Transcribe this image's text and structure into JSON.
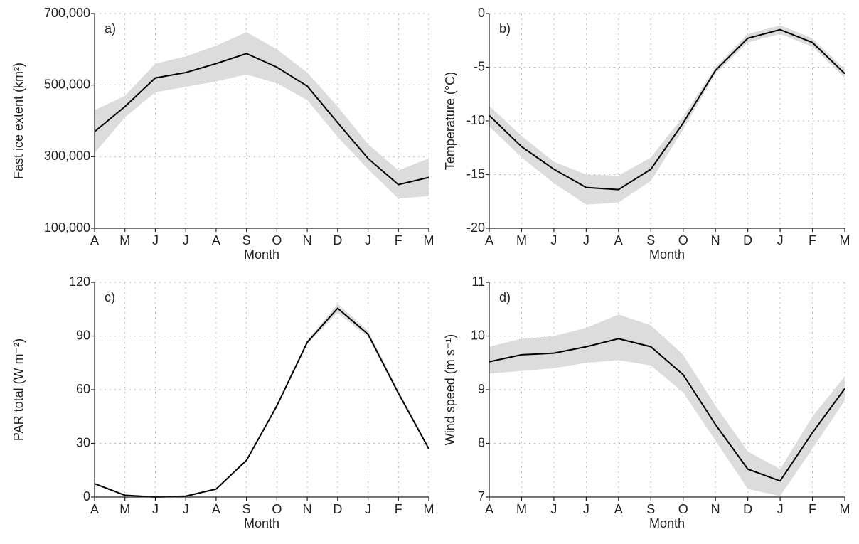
{
  "chart_data": [
    {
      "type": "line",
      "panel_label": "a)",
      "x_label": "Month",
      "y_label": "Fast ice extent (km²)",
      "categories": [
        "A",
        "M",
        "J",
        "J",
        "A",
        "S",
        "O",
        "N",
        "D",
        "J",
        "F",
        "M"
      ],
      "values": [
        370000,
        440000,
        520000,
        535000,
        560000,
        588000,
        550000,
        497000,
        395000,
        295000,
        222000,
        242000
      ],
      "band_lower": [
        310000,
        410000,
        480000,
        495000,
        510000,
        530000,
        505000,
        458000,
        355000,
        265000,
        183000,
        190000
      ],
      "band_upper": [
        430000,
        470000,
        560000,
        580000,
        610000,
        648000,
        600000,
        535000,
        440000,
        335000,
        262000,
        295000
      ],
      "color": "#000000",
      "band_color": "#dcdcdc",
      "ylim": [
        100000,
        700000
      ],
      "yticks": [
        {
          "value": 100000,
          "label": "100,000"
        },
        {
          "value": 300000,
          "label": "300,000"
        },
        {
          "value": 500000,
          "label": "500,000"
        },
        {
          "value": 700000,
          "label": "700,000"
        }
      ],
      "grid": true
    },
    {
      "type": "line",
      "panel_label": "b)",
      "x_label": "Month",
      "y_label": "Temperature (°C)",
      "categories": [
        "A",
        "M",
        "J",
        "J",
        "A",
        "S",
        "O",
        "N",
        "D",
        "J",
        "F",
        "M"
      ],
      "values": [
        -9.5,
        -12.4,
        -14.5,
        -16.2,
        -16.4,
        -14.5,
        -10.2,
        -5.3,
        -2.3,
        -1.5,
        -2.7,
        -5.6
      ],
      "band_lower": [
        -10.5,
        -13.4,
        -15.8,
        -17.8,
        -17.6,
        -15.6,
        -10.8,
        -5.6,
        -2.7,
        -1.9,
        -3.1,
        -6.0
      ],
      "band_upper": [
        -8.6,
        -11.4,
        -13.8,
        -15.0,
        -15.1,
        -13.4,
        -9.6,
        -5.0,
        -1.9,
        -1.1,
        -2.3,
        -5.2
      ],
      "color": "#000000",
      "band_color": "#dcdcdc",
      "ylim": [
        -20,
        0
      ],
      "yticks": [
        -20,
        -15,
        -10,
        -5,
        0
      ],
      "grid": true
    },
    {
      "type": "line",
      "panel_label": "c)",
      "x_label": "Month",
      "y_label": "PAR total (W m⁻²)",
      "categories": [
        "A",
        "M",
        "J",
        "J",
        "A",
        "S",
        "O",
        "N",
        "D",
        "J",
        "F",
        "M"
      ],
      "values": [
        7.5,
        1,
        0,
        0.5,
        4.5,
        20.5,
        51,
        86.5,
        105.5,
        91,
        58,
        27
      ],
      "band_lower": [
        7,
        0.5,
        0,
        0,
        4,
        20,
        50,
        85.5,
        103,
        89.5,
        57,
        26.5
      ],
      "band_upper": [
        8,
        1.5,
        0.5,
        1,
        5,
        21,
        52,
        87.5,
        108,
        93,
        59.5,
        28
      ],
      "color": "#000000",
      "band_color": "#dcdcdc",
      "ylim": [
        0,
        120
      ],
      "yticks": [
        0,
        30,
        60,
        90,
        120
      ],
      "grid": true
    },
    {
      "type": "line",
      "panel_label": "d)",
      "x_label": "Month",
      "y_label": "Wind speed (m s⁻¹)",
      "categories": [
        "A",
        "M",
        "J",
        "J",
        "A",
        "S",
        "O",
        "N",
        "D",
        "J",
        "F",
        "M"
      ],
      "values": [
        9.52,
        9.65,
        9.68,
        9.8,
        9.95,
        9.8,
        9.28,
        8.35,
        7.52,
        7.3,
        8.2,
        9.02
      ],
      "band_lower": [
        9.3,
        9.35,
        9.4,
        9.5,
        9.55,
        9.45,
        8.95,
        8.05,
        7.15,
        7.02,
        7.9,
        8.8
      ],
      "band_upper": [
        9.8,
        9.95,
        10,
        10.15,
        10.4,
        10.2,
        9.65,
        8.7,
        7.85,
        7.52,
        8.5,
        9.25
      ],
      "color": "#000000",
      "band_color": "#dcdcdc",
      "ylim": [
        7,
        11
      ],
      "yticks": [
        7,
        8,
        9,
        10,
        11
      ],
      "grid": true
    }
  ]
}
